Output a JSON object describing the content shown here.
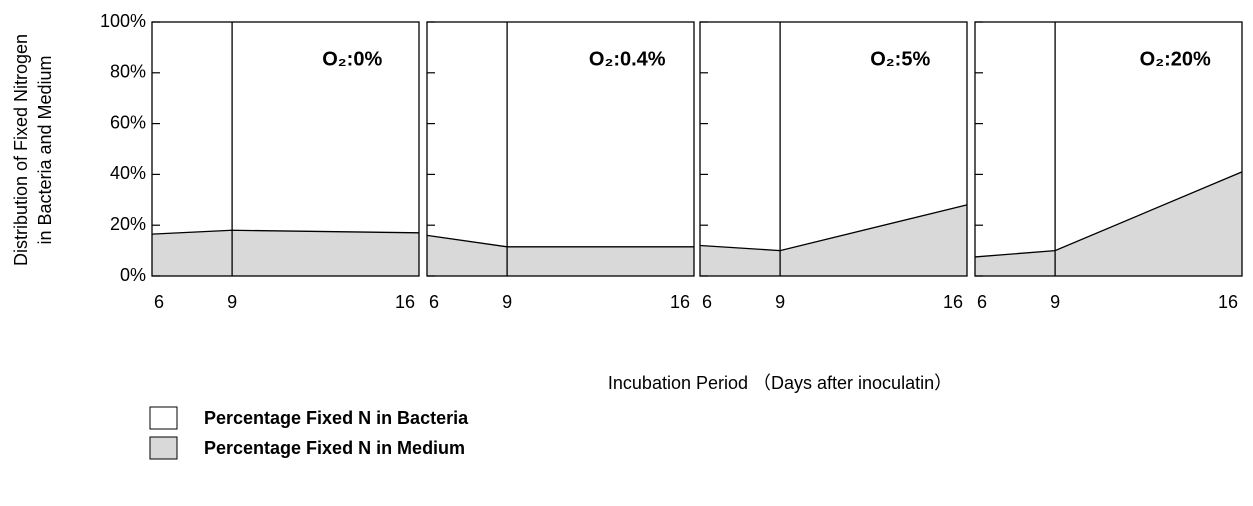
{
  "y_label": [
    "Distribution of Fixed Nitrogen",
    "in Bacteria and Medium"
  ],
  "x_label": "Incubation Period （Days after inoculatin）",
  "legend": [
    {
      "name": "Percentage Fixed N in Bacteria",
      "color": "#ffffff"
    },
    {
      "name": "Percentage Fixed N in Medium",
      "color": "#d9d9d9"
    }
  ],
  "chart_data": [
    {
      "type": "area",
      "title": "O₂:0%",
      "x": [
        6,
        9,
        16
      ],
      "series": [
        {
          "color": "#d9d9d9",
          "values": [
            16.5,
            18,
            17
          ]
        }
      ],
      "xlim": [
        6,
        16
      ],
      "xticks": [
        6,
        9,
        16
      ],
      "ylim": [
        0,
        100
      ],
      "yticks": [
        {
          "value": 0,
          "label": "0%"
        },
        {
          "value": 20,
          "label": "20%"
        },
        {
          "value": 40,
          "label": "40%"
        },
        {
          "value": 60,
          "label": "60%"
        },
        {
          "value": 80,
          "label": "80%"
        },
        {
          "value": 100,
          "label": "100%"
        }
      ]
    },
    {
      "type": "area",
      "title": "O₂:0.4%",
      "x": [
        6,
        9,
        16
      ],
      "series": [
        {
          "color": "#d9d9d9",
          "values": [
            16,
            11.5,
            11.5
          ]
        }
      ],
      "xlim": [
        6,
        16
      ],
      "xticks": [
        6,
        9,
        16
      ],
      "ylim": [
        0,
        100
      ],
      "yticks": [
        0,
        20,
        40,
        60,
        80,
        100
      ]
    },
    {
      "type": "area",
      "title": "O₂:5%",
      "x": [
        6,
        9,
        16
      ],
      "series": [
        {
          "color": "#d9d9d9",
          "values": [
            12,
            10,
            28
          ]
        }
      ],
      "xlim": [
        6,
        16
      ],
      "xticks": [
        6,
        9,
        16
      ],
      "ylim": [
        0,
        100
      ],
      "yticks": [
        0,
        20,
        40,
        60,
        80,
        100
      ]
    },
    {
      "type": "area",
      "title": "O₂:20%",
      "x": [
        6,
        9,
        16
      ],
      "series": [
        {
          "color": "#d9d9d9",
          "values": [
            7.5,
            10,
            41
          ]
        }
      ],
      "xlim": [
        6,
        16
      ],
      "xticks": [
        6,
        9,
        16
      ],
      "ylim": [
        0,
        100
      ],
      "yticks": [
        0,
        20,
        40,
        60,
        80,
        100
      ]
    }
  ]
}
